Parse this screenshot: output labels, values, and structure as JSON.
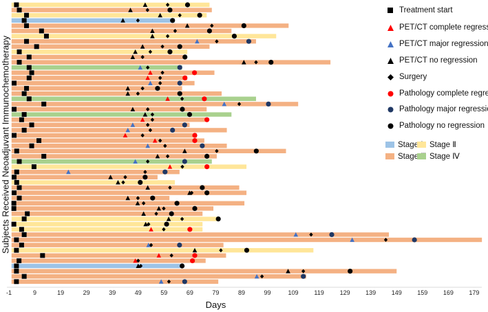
{
  "chart_data": {
    "type": "swimmer",
    "xlabel": "Days",
    "ylabel": "Subjects Received Neoadjuvant Immunochemotherapy",
    "x_ticks": [
      -1,
      9,
      19,
      29,
      39,
      49,
      59,
      69,
      79,
      89,
      99,
      109,
      119,
      129,
      139,
      149,
      159,
      169,
      179
    ],
    "xlim": [
      -1,
      189
    ],
    "colors": {
      "Stage I": "#9DC3E6",
      "Stage II": "#FFE699",
      "Stage III": "#F4B183",
      "Stage IV": "#A9D18E",
      "complete": "#FF0000",
      "major_tri": "#4472C4",
      "major_circ": "#203864",
      "no": "#000000"
    },
    "legend": {
      "treatment_start": "Treatment start",
      "petct_complete": "PET/CT complete regression",
      "petct_major": "PET/CT major regression",
      "petct_no": "PET/CT no regression",
      "surgery": "Surgery",
      "path_complete": "Pathology complete regression",
      "path_major": "Pathology major regression",
      "path_no": "Pathology no regression",
      "stage1": "Stage Ⅰ",
      "stage2": "Stage Ⅱ",
      "stage3": "Stage Ⅲ",
      "stage4": "Stage Ⅳ"
    },
    "subjects": [
      {
        "stage": "Stage II",
        "end": 76.6,
        "start": 1.9,
        "petct": [
          51.7,
          "no"
        ],
        "surgery": 60.4,
        "path": [
          68.1,
          "no"
        ]
      },
      {
        "stage": "Stage III",
        "end": 77.5,
        "start": 3,
        "petct": [
          46,
          "no"
        ],
        "surgery": 52.6,
        "path": [
          61.3,
          "no"
        ]
      },
      {
        "stage": "Stage II",
        "end": 75.5,
        "start": 5.8,
        "petct": [
          57.5,
          "no"
        ],
        "surgery": 65.1,
        "path": [
          72.8,
          "no"
        ]
      },
      {
        "stage": "Stage I",
        "end": 63.1,
        "start": 4.9,
        "petct": [
          43.1,
          "no"
        ],
        "surgery": 48.9,
        "path": [
          62.3,
          "no"
        ]
      },
      {
        "stage": "Stage III",
        "end": 107.2,
        "start": 5.8,
        "petct": [
          68,
          "no"
        ],
        "surgery": 77.5,
        "path": [
          89.9,
          "no"
        ]
      },
      {
        "stage": "Stage III",
        "end": 85.1,
        "start": 11.6,
        "petct": [
          54.5,
          "no"
        ],
        "surgery": 63.3,
        "path": [
          76.6,
          "no"
        ]
      },
      {
        "stage": "Stage II",
        "end": 102.4,
        "start": 13.5,
        "petct": [
          54.5,
          "no"
        ],
        "surgery": 60.4,
        "path": [
          86.2,
          "no"
        ]
      },
      {
        "stage": "Stage III",
        "end": 94.6,
        "start": 5.8,
        "petct": [
          71.8,
          "major"
        ],
        "surgery": 79.4,
        "path": [
          91.8,
          "major"
        ]
      },
      {
        "stage": "Stage III",
        "end": 76.6,
        "start": 9.7,
        "petct": [
          50.7,
          "no"
        ],
        "surgery": 58.4,
        "path": [
          65.1,
          "no"
        ]
      },
      {
        "stage": "Stage II",
        "end": 68,
        "start": 3,
        "petct": [
          47.9,
          "no"
        ],
        "surgery": 53.7,
        "path": [
          61.3,
          "no"
        ]
      },
      {
        "stage": "Stage III",
        "end": 67.8,
        "start": 6.8,
        "petct": [
          46.9,
          "no"
        ],
        "surgery": 50.7,
        "path": [
          67.1,
          "no"
        ]
      },
      {
        "stage": "Stage III",
        "end": 123.4,
        "start": 3,
        "petct": [
          89.9,
          "no"
        ],
        "surgery": 94.6,
        "path": [
          100.4,
          "no"
        ]
      },
      {
        "stage": "Stage IV",
        "end": 66,
        "start": 6.8,
        "petct": [
          49.8,
          "major"
        ],
        "surgery": 52.7,
        "path": [
          65.1,
          "major"
        ]
      },
      {
        "stage": "Stage III",
        "end": 78.5,
        "start": 7.8,
        "petct": [
          53.7,
          "complete"
        ],
        "surgery": 58.4,
        "path": [
          70.8,
          "complete"
        ]
      },
      {
        "stage": "Stage III",
        "end": 68,
        "start": 6.8,
        "petct": [
          52.7,
          "complete"
        ],
        "surgery": 57.5,
        "path": [
          67.1,
          "complete"
        ]
      },
      {
        "stage": "Stage III",
        "end": 70.8,
        "start": 1,
        "petct": [
          53.7,
          "major"
        ],
        "surgery": 57.5,
        "path": [
          65.1,
          "major"
        ]
      },
      {
        "stage": "Stage III",
        "end": 66,
        "start": 5.8,
        "petct": [
          45,
          "no"
        ],
        "surgery": 50.7,
        "path": [
          56.5,
          "no"
        ]
      },
      {
        "stage": "Stage III",
        "end": 81.3,
        "start": 4.9,
        "petct": [
          45,
          "no"
        ],
        "surgery": 48.9,
        "path": [
          65.1,
          "no"
        ]
      },
      {
        "stage": "Stage IV",
        "end": 94.6,
        "start": 6.8,
        "petct": [
          60.4,
          "complete"
        ],
        "surgery": 66,
        "path": [
          74.6,
          "complete"
        ]
      },
      {
        "stage": "Stage III",
        "end": 110.9,
        "start": 12.5,
        "petct": [
          82.3,
          "major"
        ],
        "surgery": 88.1,
        "path": [
          99.4,
          "major"
        ]
      },
      {
        "stage": "Stage III",
        "end": 75.5,
        "start": 1,
        "petct": [
          46.9,
          "no"
        ],
        "surgery": 52.7,
        "path": [
          66.1,
          "no"
        ]
      },
      {
        "stage": "Stage IV",
        "end": 85.1,
        "start": 4.9,
        "petct": [
          51.7,
          "no"
        ],
        "surgery": 54.5,
        "path": [
          68.9,
          "no"
        ]
      },
      {
        "stage": "Stage III",
        "end": 75.5,
        "start": 3.9,
        "petct": [
          50.7,
          "complete"
        ],
        "surgery": 54.5,
        "path": [
          75.6,
          "complete"
        ]
      },
      {
        "stage": "Stage III",
        "end": 68.9,
        "start": 7.8,
        "petct": [
          46.9,
          "major"
        ],
        "surgery": 52.7,
        "path": [
          67,
          "major"
        ]
      },
      {
        "stage": "Stage III",
        "end": 83.3,
        "start": 4.9,
        "petct": [
          45,
          "major"
        ],
        "surgery": 53.7,
        "path": [
          62.3,
          "major"
        ]
      },
      {
        "stage": "Stage III",
        "end": 71.7,
        "start": 1,
        "petct": [
          44,
          "complete"
        ],
        "surgery": 50.7,
        "path": [
          70.9,
          "complete"
        ]
      },
      {
        "stage": "Stage III",
        "end": 74.6,
        "start": 10.6,
        "petct": [
          55.5,
          "complete"
        ],
        "surgery": 57.5,
        "path": [
          70.9,
          "complete"
        ]
      },
      {
        "stage": "Stage III",
        "end": 83.3,
        "start": 7.8,
        "petct": [
          52.7,
          "major"
        ],
        "surgery": 59.4,
        "path": [
          73.8,
          "major"
        ]
      },
      {
        "stage": "Stage III",
        "end": 106.2,
        "start": 2,
        "petct": [
          67,
          "no"
        ],
        "surgery": 79.4,
        "path": [
          94.7,
          "no"
        ]
      },
      {
        "stage": "Stage III",
        "end": 79.4,
        "start": 12.5,
        "petct": [
          56.5,
          "no"
        ],
        "surgery": 60.4,
        "path": [
          75.6,
          "no"
        ]
      },
      {
        "stage": "Stage IV",
        "end": 77.5,
        "start": 3,
        "petct": [
          47.9,
          "major"
        ],
        "surgery": 52.7,
        "path": [
          67,
          "major"
        ]
      },
      {
        "stage": "Stage II",
        "end": 90.9,
        "start": 8.7,
        "petct": [
          61.3,
          "complete"
        ],
        "surgery": 66.1,
        "path": [
          75.6,
          "complete"
        ]
      },
      {
        "stage": "Stage III",
        "end": 65,
        "start": 2,
        "petct": [
          22,
          "major"
        ],
        "surgery": 51.7,
        "path": [
          59.4,
          "major"
        ]
      },
      {
        "stage": "Stage III",
        "end": 56.5,
        "start": 1,
        "petct": [
          38.3,
          "no"
        ],
        "surgery": 44,
        "path": [
          51.7,
          "no"
        ]
      },
      {
        "stage": "Stage II",
        "end": 63.2,
        "start": 2,
        "petct": [
          41.2,
          "no"
        ],
        "surgery": 43.2,
        "path": [
          49.8,
          "no"
        ]
      },
      {
        "stage": "Stage III",
        "end": 88.1,
        "start": 3,
        "petct": [
          52.7,
          "no"
        ],
        "surgery": 61.3,
        "path": [
          73.8,
          "no"
        ]
      },
      {
        "stage": "Stage III",
        "end": 90.9,
        "start": 1,
        "petct": [
          68.9,
          "no"
        ],
        "surgery": 69.7,
        "path": [
          75.6,
          "no"
        ]
      },
      {
        "stage": "Stage III",
        "end": 61.1,
        "start": 3,
        "petct": [
          45,
          "no"
        ],
        "surgery": 48.9,
        "path": [
          54.6,
          "no"
        ]
      },
      {
        "stage": "Stage III",
        "end": 90.1,
        "start": 0.9,
        "petct": [
          48.8,
          "no"
        ],
        "surgery": 51.1,
        "path": [
          64,
          "no"
        ]
      },
      {
        "stage": "Stage III",
        "end": 78.1,
        "start": 0.9,
        "petct": [
          57,
          "no"
        ],
        "surgery": 58.9,
        "path": [
          70.9,
          "no"
        ]
      },
      {
        "stage": "Stage III",
        "end": 73.9,
        "start": 6.1,
        "petct": [
          51.1,
          "no"
        ],
        "surgery": 56,
        "path": [
          61.9,
          "no"
        ]
      },
      {
        "stage": "Stage II",
        "end": 80,
        "start": 4.9,
        "petct": [
          60.8,
          "no"
        ],
        "surgery": 66,
        "path": [
          80,
          "no"
        ]
      },
      {
        "stage": "Stage II",
        "end": 73.9,
        "start": 0.9,
        "petct": [
          51.9,
          "no"
        ],
        "surgery": 53,
        "path": [
          60,
          "no"
        ]
      },
      {
        "stage": "Stage II",
        "end": 73.9,
        "start": 3.9,
        "petct": [
          54,
          "complete"
        ],
        "surgery": 58.9,
        "path": [
          69,
          "complete"
        ]
      },
      {
        "stage": "Stage III",
        "end": 146,
        "start": 4.9,
        "petct": [
          110,
          "major"
        ],
        "surgery": 115.9,
        "path": [
          123.9,
          "major"
        ]
      },
      {
        "stage": "Stage III",
        "end": 182,
        "start": 1.9,
        "petct": [
          131.8,
          "major"
        ],
        "surgery": 144.8,
        "path": [
          155.9,
          "major"
        ]
      },
      {
        "stage": "Stage III",
        "end": 82,
        "start": 3.9,
        "petct": [
          53,
          "major"
        ],
        "surgery": 54,
        "path": [
          65,
          "major"
        ]
      },
      {
        "stage": "Stage II",
        "end": 116.8,
        "start": 1.9,
        "petct": [
          70.9,
          "no"
        ],
        "surgery": 81,
        "path": [
          91,
          "no"
        ]
      },
      {
        "stage": "Stage III",
        "end": 83,
        "start": 12,
        "petct": [
          57,
          "complete"
        ],
        "surgery": 61.9,
        "path": [
          70.9,
          "complete"
        ]
      },
      {
        "stage": "Stage III",
        "end": 75.1,
        "start": 2.9,
        "petct": [
          47.9,
          "complete"
        ],
        "surgery": 49,
        "path": [
          70,
          "complete"
        ]
      },
      {
        "stage": "Stage I",
        "end": 66,
        "start": 1.9,
        "petct": [
          49,
          "no"
        ],
        "surgery": 50,
        "path": [
          66,
          "no"
        ]
      },
      {
        "stage": "Stage III",
        "end": 149,
        "start": 1.9,
        "petct": [
          107,
          "no"
        ],
        "surgery": 112.9,
        "path": [
          131,
          "no"
        ]
      },
      {
        "stage": "Stage III",
        "end": 114,
        "start": 4.9,
        "petct": [
          94.9,
          "major"
        ],
        "surgery": 96.9,
        "path": [
          112.9,
          "major"
        ]
      },
      {
        "stage": "Stage III",
        "end": 80,
        "start": 1.9,
        "petct": [
          57.9,
          "major"
        ],
        "surgery": 60.9,
        "path": [
          67,
          "major"
        ]
      }
    ]
  }
}
